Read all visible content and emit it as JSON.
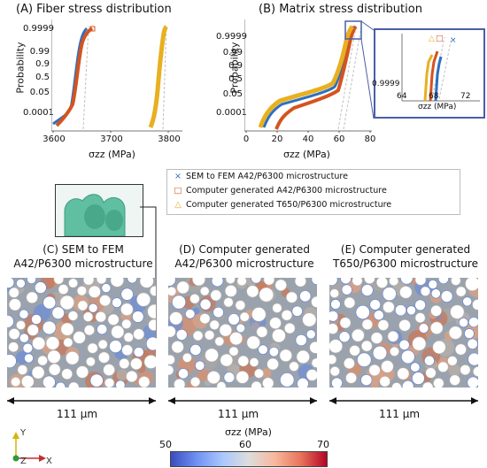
{
  "panel_a": {
    "title": "(A) Fiber stress distribution",
    "ylabel": "Probability",
    "xlabel": "σzz (MPa)",
    "yticks": [
      "0.9999",
      "0.99",
      "0.9",
      "0.5",
      "0.05",
      "0.0001"
    ],
    "xticks": [
      "3600",
      "3700",
      "3800"
    ]
  },
  "panel_b": {
    "title": "(B) Matrix stress distribution",
    "ylabel": "Probability",
    "xlabel": "σzz (MPa)",
    "yticks": [
      "0.9999",
      "0.99",
      "0.9",
      "0.5",
      "0.05",
      "0.0001"
    ],
    "xticks": [
      "0",
      "20",
      "40",
      "60",
      "80"
    ],
    "inset": {
      "ytick": "0.9999",
      "xticks": [
        "64",
        "68",
        "72"
      ],
      "xlabel": "σzz (MPa)"
    }
  },
  "legend": {
    "items": [
      {
        "label": "SEM to FEM A42/P6300 microstructure",
        "marker": "×",
        "color": "#2e6fc2"
      },
      {
        "label": "Computer generated A42/P6300 microstructure",
        "marker": "□",
        "color": "#d4541e"
      },
      {
        "label": "Computer generated T650/P6300 microstructure",
        "marker": "△",
        "color": "#e8b020"
      }
    ]
  },
  "panels": [
    {
      "line1": "(C) SEM to FEM",
      "line2": "A42/P6300 microstructure"
    },
    {
      "line1": "(D) Computer generated",
      "line2": "A42/P6300 microstructure"
    },
    {
      "line1": "(E) Computer generated",
      "line2": "T650/P6300 microstructure"
    }
  ],
  "scale_label": "111 μm",
  "axes_triad": {
    "y": "Y",
    "z": "Z",
    "x": "X"
  },
  "colorbar": {
    "label": "σzz (MPa)",
    "ticks": [
      "50",
      "60",
      "70"
    ],
    "min_color": "#3b4cc0",
    "mid_color": "#dddddd",
    "max_color": "#b40426"
  },
  "colors": {
    "sem": "#2e6fc2",
    "cg_a42": "#d4541e",
    "cg_t650": "#e8b020",
    "inset_frame": "#4a5ea8",
    "fiber_zoom": "#5fbfa0"
  },
  "chart_data": [
    {
      "type": "scatter",
      "title": "(A) Fiber stress distribution",
      "xlabel": "σzz (MPa)",
      "ylabel": "Probability",
      "xlim": [
        3580,
        3830
      ],
      "series": [
        {
          "name": "SEM to FEM A42/P6300 microstructure",
          "x": [
            3605,
            3620,
            3630,
            3635,
            3640,
            3648,
            3655
          ],
          "y": [
            0.0001,
            0.001,
            0.05,
            0.5,
            0.9,
            0.99,
            0.9999
          ]
        },
        {
          "name": "Computer generated A42/P6300 microstructure",
          "x": [
            3608,
            3622,
            3632,
            3638,
            3645,
            3655,
            3665
          ],
          "y": [
            0.0001,
            0.001,
            0.05,
            0.5,
            0.9,
            0.99,
            0.9999
          ]
        },
        {
          "name": "Computer generated T650/P6300 microstructure",
          "x": [
            3770,
            3775,
            3780,
            3783,
            3787,
            3791,
            3795
          ],
          "y": [
            0.0001,
            0.001,
            0.05,
            0.5,
            0.9,
            0.99,
            0.9999
          ]
        }
      ]
    },
    {
      "type": "scatter",
      "title": "(B) Matrix stress distribution",
      "xlabel": "σzz (MPa)",
      "ylabel": "Probability",
      "xlim": [
        0,
        80
      ],
      "series": [
        {
          "name": "SEM to FEM A42/P6300 microstructure",
          "x": [
            12,
            20,
            35,
            56,
            60,
            64,
            68
          ],
          "y": [
            0.0001,
            0.001,
            0.05,
            0.5,
            0.9,
            0.99,
            0.9999
          ]
        },
        {
          "name": "Computer generated A42/P6300 microstructure",
          "x": [
            18,
            22,
            40,
            58,
            62,
            66,
            68
          ],
          "y": [
            0.0001,
            0.001,
            0.05,
            0.5,
            0.9,
            0.99,
            0.9999
          ]
        },
        {
          "name": "Computer generated T650/P6300 microstructure",
          "x": [
            10,
            18,
            30,
            55,
            60,
            64,
            67
          ],
          "y": [
            0.0001,
            0.001,
            0.05,
            0.5,
            0.9,
            0.99,
            0.9999
          ]
        }
      ]
    }
  ]
}
